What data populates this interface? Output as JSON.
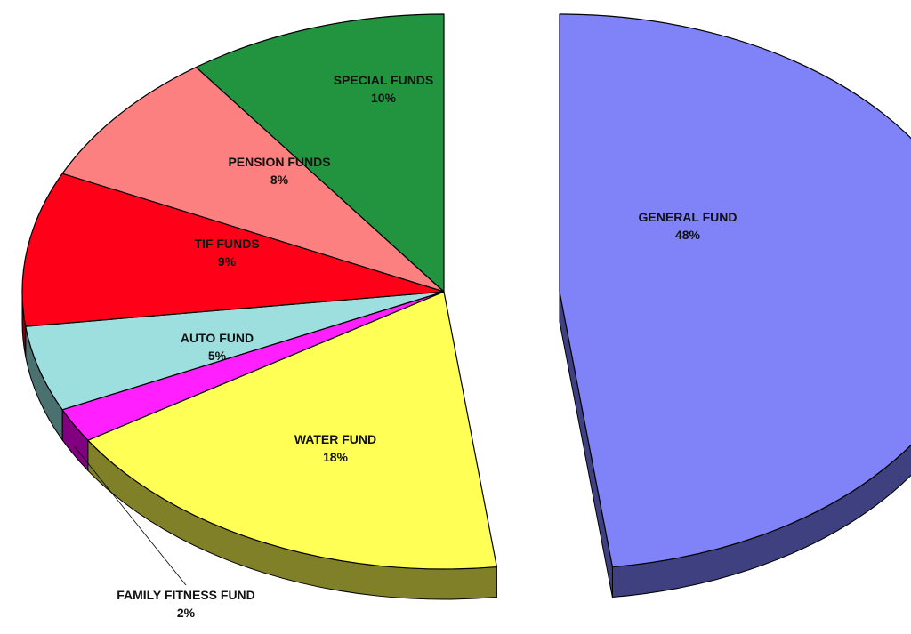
{
  "chart_data": {
    "type": "pie",
    "title": "",
    "slices": [
      {
        "name": "GENERAL FUND",
        "value": 48,
        "pct_label": "48%",
        "color": "#8083f7",
        "side_color": "#3e4080",
        "exploded": true
      },
      {
        "name": "WATER FUND",
        "value": 18,
        "pct_label": "18%",
        "color": "#ffff56",
        "side_color": "#808028"
      },
      {
        "name": "FAMILY FITNESS FUND",
        "value": 2,
        "pct_label": "2%",
        "color": "#ff1fff",
        "side_color": "#800080"
      },
      {
        "name": "AUTO FUND",
        "value": 5,
        "pct_label": "5%",
        "color": "#9ddfdf",
        "side_color": "#4a7070"
      },
      {
        "name": "TIF FUNDS",
        "value": 9,
        "pct_label": "9%",
        "color": "#ff0019",
        "side_color": "#800010"
      },
      {
        "name": "PENSION FUNDS",
        "value": 8,
        "pct_label": "8%",
        "color": "#fd8081",
        "side_color": "#804040"
      },
      {
        "name": "SPECIAL FUNDS",
        "value": 10,
        "pct_label": "10%",
        "color": "#22943f",
        "side_color": "#114a20"
      }
    ],
    "outline_color": "#000000"
  }
}
